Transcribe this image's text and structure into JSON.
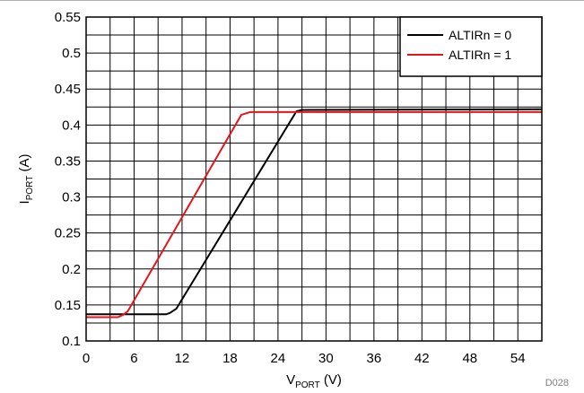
{
  "chart_data": {
    "type": "line",
    "xlabel": {
      "main": "V",
      "sub": "PORT",
      "unit": " (V)"
    },
    "ylabel": {
      "main": "I",
      "sub": "PORT",
      "unit": " (A)"
    },
    "xlim": [
      0,
      57
    ],
    "ylim": [
      0.1,
      0.55
    ],
    "xticks": [
      0,
      6,
      12,
      18,
      24,
      30,
      36,
      42,
      48,
      54
    ],
    "yticks": [
      0.1,
      0.15,
      0.2,
      0.25,
      0.3,
      0.35,
      0.4,
      0.45,
      0.5,
      0.55
    ],
    "grid": true,
    "legend_position": "top-right",
    "series": [
      {
        "name": "ALTIRn = 0",
        "color": "#000000",
        "points": [
          [
            0,
            0.137
          ],
          [
            10,
            0.137
          ],
          [
            10.5,
            0.139
          ],
          [
            11.3,
            0.145
          ],
          [
            26.3,
            0.419
          ],
          [
            27,
            0.421
          ],
          [
            57,
            0.422
          ]
        ]
      },
      {
        "name": "ALTIRn = 1",
        "color": "#e8141c",
        "points": [
          [
            0,
            0.133
          ],
          [
            4,
            0.133
          ],
          [
            4.6,
            0.136
          ],
          [
            5.2,
            0.141
          ],
          [
            19.4,
            0.414
          ],
          [
            20.5,
            0.418
          ],
          [
            57,
            0.418
          ]
        ]
      }
    ]
  },
  "figure_id": "D028"
}
